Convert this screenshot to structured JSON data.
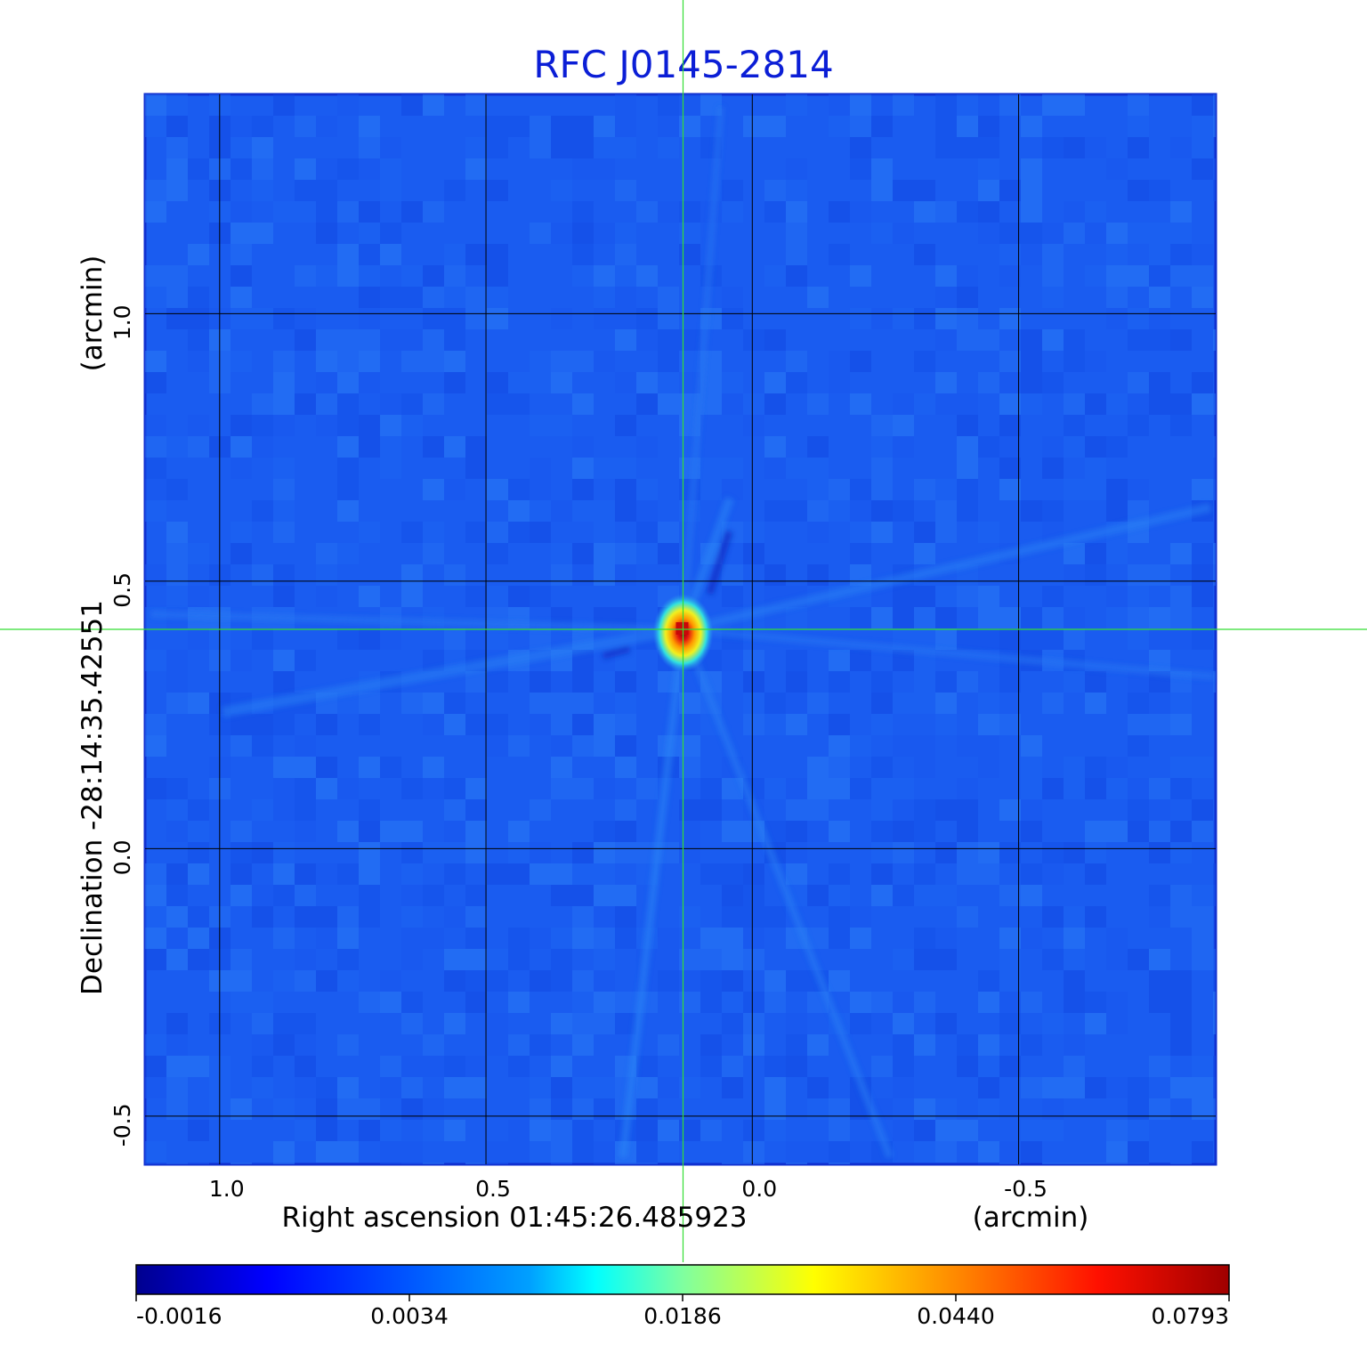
{
  "chart_data": {
    "type": "heatmap",
    "title": "RFC J0145-2814",
    "xlabel": "Right ascension  01:45:26.485923",
    "xunit": "(arcmin)",
    "ylabel": "Declination  -28:14:35.42551",
    "yunit": "(arcmin)",
    "xlim": [
      1.14,
      -0.87
    ],
    "ylim": [
      -0.59,
      1.41
    ],
    "xticks": [
      1.0,
      0.5,
      0.0,
      -0.5
    ],
    "xtick_labels": [
      "1.0",
      "0.5",
      "0.0",
      "-0.5"
    ],
    "yticks": [
      1.0,
      0.5,
      0.0,
      -0.5
    ],
    "ytick_labels": [
      "1.0",
      "0.5",
      "0.0",
      "-0.5"
    ],
    "grid": true,
    "crosshair": {
      "x": 0.13,
      "y": 0.41
    },
    "peak": {
      "x": 0.13,
      "y": 0.41,
      "value": 0.0793
    },
    "colorscale": "jet",
    "colorbar": {
      "ticks": [
        -0.0016,
        0.0034,
        0.0186,
        0.044,
        0.0793
      ],
      "tick_labels": [
        "-0.0016",
        "0.0034",
        "0.0186",
        "0.0440",
        "0.0793"
      ]
    }
  },
  "colors": {
    "title": "#0b1ed6",
    "crosshair": "#33dd33",
    "background_level": "#1a5cf0",
    "grid": "#000000"
  }
}
